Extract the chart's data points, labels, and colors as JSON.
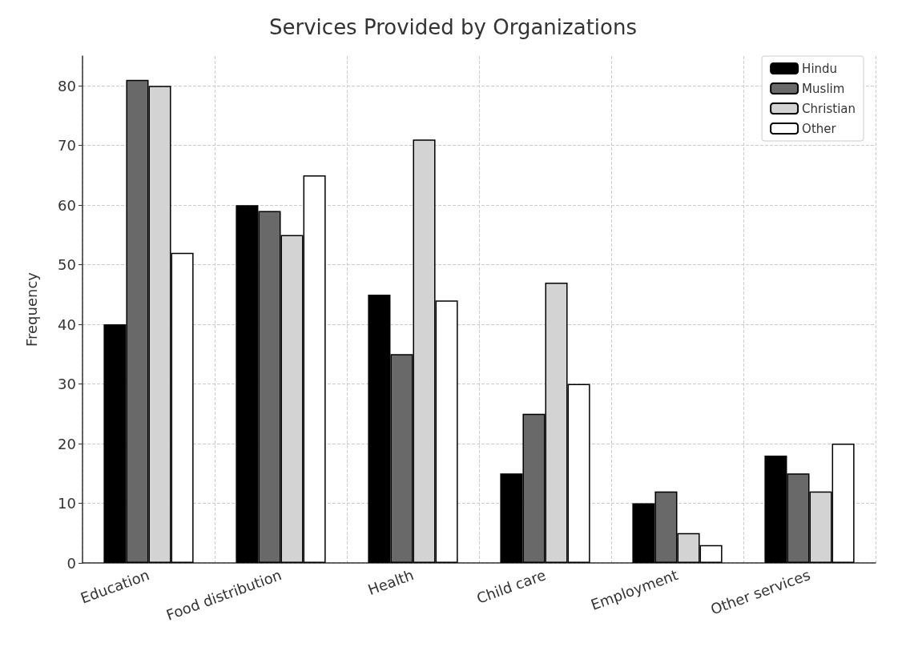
{
  "chart_data": {
    "type": "bar",
    "title": "Services Provided by Organizations",
    "ylabel": "Frequency",
    "categories": [
      "Education",
      "Food distribution",
      "Health",
      "Child care",
      "Employment",
      "Other services"
    ],
    "series": [
      {
        "name": "Hindu",
        "color": "#000000",
        "values": [
          40,
          60,
          45,
          15,
          10,
          18
        ]
      },
      {
        "name": "Muslim",
        "color": "#696969",
        "values": [
          81,
          59,
          35,
          25,
          12,
          15
        ]
      },
      {
        "name": "Christian",
        "color": "#d3d3d3",
        "values": [
          80,
          55,
          71,
          47,
          5,
          12
        ]
      },
      {
        "name": "Other",
        "color": "#ffffff",
        "values": [
          52,
          65,
          44,
          30,
          3,
          20
        ]
      }
    ],
    "ylim": [
      0,
      85
    ],
    "yticks": [
      0,
      10,
      20,
      30,
      40,
      50,
      60,
      70,
      80
    ],
    "grid": true,
    "legend": "top right"
  }
}
